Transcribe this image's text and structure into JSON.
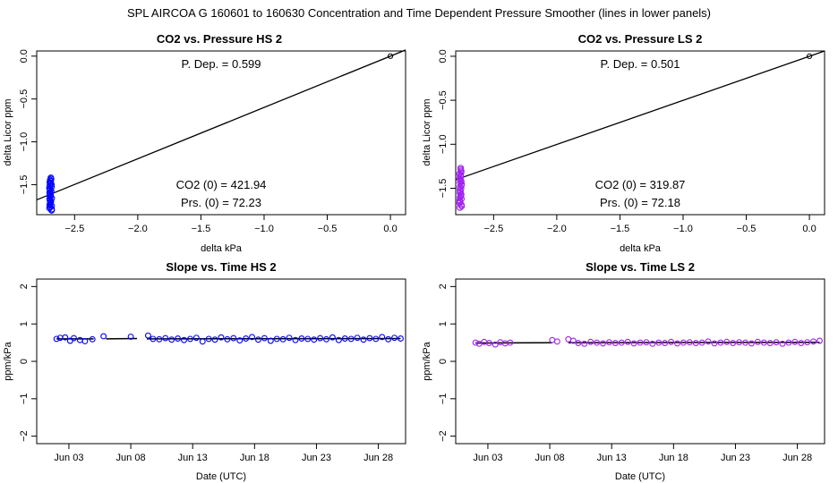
{
  "figure_title": "SPL    AIRCOA G    160601 to 160630    Concentration and Time Dependent Pressure Smoother (lines in lower panels)",
  "colors": {
    "blue": "#0000ff",
    "purple": "#a020f0",
    "black": "#000000"
  },
  "chart_data": [
    {
      "id": "hs-pressure",
      "type": "scatter",
      "title": "CO2 vs. Pressure HS 2",
      "xlabel": "delta kPa",
      "ylabel": "delta Licor ppm",
      "xlim": [
        -2.8,
        0.12
      ],
      "ylim": [
        -1.85,
        0.06
      ],
      "xticks": [
        -2.5,
        -2.0,
        -1.5,
        -1.0,
        -0.5,
        0.0
      ],
      "xticklabels": [
        "−2.5",
        "−2.0",
        "−1.5",
        "−1.0",
        "−0.5",
        "0.0"
      ],
      "yticks": [
        0.0,
        -0.5,
        -1.0,
        -1.5
      ],
      "yticklabels": [
        "0.0",
        "−0.5",
        "−1.0",
        "−1.5"
      ],
      "fit_line": {
        "x": [
          -2.8,
          0.12
        ],
        "y": [
          -1.677,
          0.072
        ]
      },
      "zero_point": {
        "x": 0.0,
        "y": 0.0
      },
      "cluster": {
        "x_center": -2.69,
        "y_min": -1.8,
        "y_max": -1.42,
        "n": 30,
        "color": "blue"
      },
      "annotations": {
        "p_dep": "P. Dep. =  0.599",
        "co2_zero": "CO2 (0) =  421.94",
        "prs_zero": "Prs. (0) =  72.23"
      }
    },
    {
      "id": "ls-pressure",
      "type": "scatter",
      "title": "CO2 vs. Pressure LS 2",
      "xlabel": "delta kPa",
      "ylabel": "delta Licor ppm",
      "xlim": [
        -2.8,
        0.12
      ],
      "ylim": [
        -1.8,
        0.06
      ],
      "xticks": [
        -2.5,
        -2.0,
        -1.5,
        -1.0,
        -0.5,
        0.0
      ],
      "xticklabels": [
        "−2.5",
        "−2.0",
        "−1.5",
        "−1.0",
        "−0.5",
        "0.0"
      ],
      "yticks": [
        0.0,
        -0.5,
        -1.0,
        -1.5
      ],
      "yticklabels": [
        "0.0",
        "−0.5",
        "−1.0",
        "−1.5"
      ],
      "fit_line": {
        "x": [
          -2.8,
          0.12
        ],
        "y": [
          -1.403,
          0.06
        ]
      },
      "zero_point": {
        "x": 0.0,
        "y": 0.0
      },
      "cluster": {
        "x_center": -2.76,
        "y_min": -1.72,
        "y_max": -1.27,
        "n": 28,
        "color": "purple"
      },
      "annotations": {
        "p_dep": "P. Dep. =  0.501",
        "co2_zero": "CO2 (0) =  319.87",
        "prs_zero": "Prs. (0) =  72.18"
      }
    },
    {
      "id": "hs-slope",
      "type": "scatter",
      "title": "Slope vs. Time HS 2",
      "xlabel": "Date (UTC)",
      "ylabel": "ppm/kPa",
      "xlim": [
        -0.6,
        29.2
      ],
      "ylim": [
        -2.2,
        2.2
      ],
      "xticks": [
        2,
        7,
        12,
        17,
        22,
        27
      ],
      "xticklabels": [
        "Jun 03",
        "Jun 08",
        "Jun 13",
        "Jun 18",
        "Jun 23",
        "Jun 28"
      ],
      "yticks": [
        -2,
        -1,
        0,
        1,
        2
      ],
      "yticklabels": [
        "−2",
        "−1",
        "0",
        "1",
        "2"
      ],
      "series": {
        "name": "slope",
        "color": "blue",
        "values": [
          [
            1.0,
            0.6
          ],
          [
            1.3,
            0.63
          ],
          [
            1.7,
            0.64
          ],
          [
            2.1,
            0.55
          ],
          [
            2.4,
            0.62
          ],
          [
            2.9,
            0.57
          ],
          [
            3.3,
            0.54
          ],
          [
            3.9,
            0.59
          ],
          [
            4.8,
            0.67
          ],
          [
            7.0,
            0.66
          ],
          [
            8.4,
            0.69
          ],
          [
            8.8,
            0.6
          ],
          [
            9.3,
            0.59
          ],
          [
            9.8,
            0.62
          ],
          [
            10.3,
            0.58
          ],
          [
            10.8,
            0.61
          ],
          [
            11.3,
            0.57
          ],
          [
            11.8,
            0.6
          ],
          [
            12.3,
            0.63
          ],
          [
            12.8,
            0.53
          ],
          [
            13.3,
            0.6
          ],
          [
            13.8,
            0.58
          ],
          [
            14.3,
            0.64
          ],
          [
            14.8,
            0.59
          ],
          [
            15.3,
            0.62
          ],
          [
            15.8,
            0.56
          ],
          [
            16.3,
            0.61
          ],
          [
            16.8,
            0.65
          ],
          [
            17.3,
            0.58
          ],
          [
            17.8,
            0.62
          ],
          [
            18.3,
            0.55
          ],
          [
            18.8,
            0.6
          ],
          [
            19.3,
            0.59
          ],
          [
            19.8,
            0.63
          ],
          [
            20.3,
            0.57
          ],
          [
            20.8,
            0.61
          ],
          [
            21.3,
            0.6
          ],
          [
            21.8,
            0.58
          ],
          [
            22.3,
            0.62
          ],
          [
            22.8,
            0.59
          ],
          [
            23.3,
            0.64
          ],
          [
            23.8,
            0.57
          ],
          [
            24.3,
            0.61
          ],
          [
            24.8,
            0.6
          ],
          [
            25.3,
            0.63
          ],
          [
            25.8,
            0.58
          ],
          [
            26.3,
            0.62
          ],
          [
            26.8,
            0.6
          ],
          [
            27.3,
            0.65
          ],
          [
            27.8,
            0.59
          ],
          [
            28.3,
            0.63
          ],
          [
            28.8,
            0.61
          ]
        ]
      },
      "smoother": {
        "segments": [
          [
            [
              1.0,
              0.6
            ],
            [
              4.0,
              0.6
            ]
          ],
          [
            [
              5.0,
              0.6
            ],
            [
              7.5,
              0.61
            ]
          ],
          [
            [
              8.3,
              0.6
            ],
            [
              28.8,
              0.61
            ]
          ]
        ]
      }
    },
    {
      "id": "ls-slope",
      "type": "scatter",
      "title": "Slope vs. Time LS 2",
      "xlabel": "Date (UTC)",
      "ylabel": "ppm/kPa",
      "xlim": [
        -0.6,
        29.2
      ],
      "ylim": [
        -2.2,
        2.2
      ],
      "xticks": [
        2,
        7,
        12,
        17,
        22,
        27
      ],
      "xticklabels": [
        "Jun 03",
        "Jun 08",
        "Jun 13",
        "Jun 18",
        "Jun 23",
        "Jun 28"
      ],
      "yticks": [
        -2,
        -1,
        0,
        1,
        2
      ],
      "yticklabels": [
        "−2",
        "−1",
        "0",
        "1",
        "2"
      ],
      "series": {
        "name": "slope",
        "color": "purple",
        "values": [
          [
            1.0,
            0.5
          ],
          [
            1.3,
            0.47
          ],
          [
            1.7,
            0.52
          ],
          [
            2.1,
            0.49
          ],
          [
            2.6,
            0.45
          ],
          [
            3.0,
            0.51
          ],
          [
            3.4,
            0.48
          ],
          [
            3.8,
            0.5
          ],
          [
            7.2,
            0.57
          ],
          [
            7.6,
            0.53
          ],
          [
            8.5,
            0.59
          ],
          [
            8.9,
            0.55
          ],
          [
            9.3,
            0.49
          ],
          [
            9.8,
            0.47
          ],
          [
            10.3,
            0.52
          ],
          [
            10.8,
            0.5
          ],
          [
            11.3,
            0.48
          ],
          [
            11.8,
            0.51
          ],
          [
            12.3,
            0.49
          ],
          [
            12.8,
            0.5
          ],
          [
            13.3,
            0.52
          ],
          [
            13.8,
            0.48
          ],
          [
            14.3,
            0.5
          ],
          [
            14.8,
            0.51
          ],
          [
            15.3,
            0.47
          ],
          [
            15.8,
            0.5
          ],
          [
            16.3,
            0.49
          ],
          [
            16.8,
            0.52
          ],
          [
            17.3,
            0.48
          ],
          [
            17.8,
            0.5
          ],
          [
            18.3,
            0.51
          ],
          [
            18.8,
            0.49
          ],
          [
            19.3,
            0.5
          ],
          [
            19.8,
            0.53
          ],
          [
            20.3,
            0.48
          ],
          [
            20.8,
            0.5
          ],
          [
            21.3,
            0.52
          ],
          [
            21.8,
            0.49
          ],
          [
            22.3,
            0.51
          ],
          [
            22.8,
            0.5
          ],
          [
            23.3,
            0.48
          ],
          [
            23.8,
            0.52
          ],
          [
            24.3,
            0.5
          ],
          [
            24.8,
            0.49
          ],
          [
            25.3,
            0.51
          ],
          [
            25.8,
            0.47
          ],
          [
            26.3,
            0.5
          ],
          [
            26.8,
            0.52
          ],
          [
            27.3,
            0.49
          ],
          [
            27.8,
            0.51
          ],
          [
            28.3,
            0.53
          ],
          [
            28.8,
            0.55
          ]
        ]
      },
      "smoother": {
        "segments": [
          [
            [
              1.0,
              0.49
            ],
            [
              7.2,
              0.5
            ]
          ],
          [
            [
              8.5,
              0.5
            ],
            [
              28.8,
              0.51
            ]
          ]
        ]
      }
    }
  ]
}
